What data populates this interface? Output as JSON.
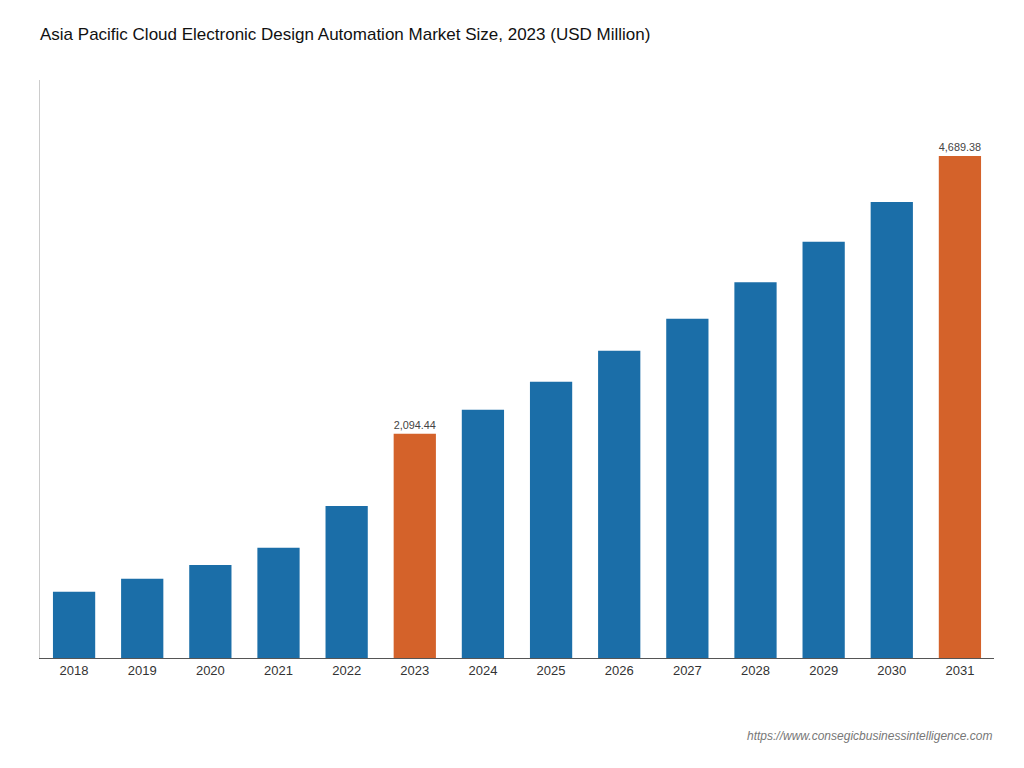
{
  "chart_data": {
    "type": "bar",
    "title": "Asia Pacific Cloud Electronic Design Automation Market Size, 2023 (USD Million)",
    "categories": [
      "2018",
      "2019",
      "2020",
      "2021",
      "2022",
      "2023",
      "2024",
      "2025",
      "2026",
      "2027",
      "2028",
      "2029",
      "2030",
      "2031"
    ],
    "values": [
      620,
      740,
      870,
      1030,
      1420,
      2094.44,
      2320,
      2580,
      2870,
      3170,
      3510,
      3890,
      4260,
      4689.38
    ],
    "value_labels": [
      null,
      null,
      null,
      null,
      null,
      "2,094.44",
      null,
      null,
      null,
      null,
      null,
      null,
      null,
      "4,689.38"
    ],
    "colors": [
      "#1b6ea8",
      "#1b6ea8",
      "#1b6ea8",
      "#1b6ea8",
      "#1b6ea8",
      "#d4622a",
      "#1b6ea8",
      "#1b6ea8",
      "#1b6ea8",
      "#1b6ea8",
      "#1b6ea8",
      "#1b6ea8",
      "#1b6ea8",
      "#d4622a"
    ],
    "ylim": [
      0,
      5400
    ],
    "tick_labels": "x",
    "grid": false,
    "annotations": [
      {
        "text": "https://www.consegicbusinessintelligence.com"
      }
    ]
  }
}
